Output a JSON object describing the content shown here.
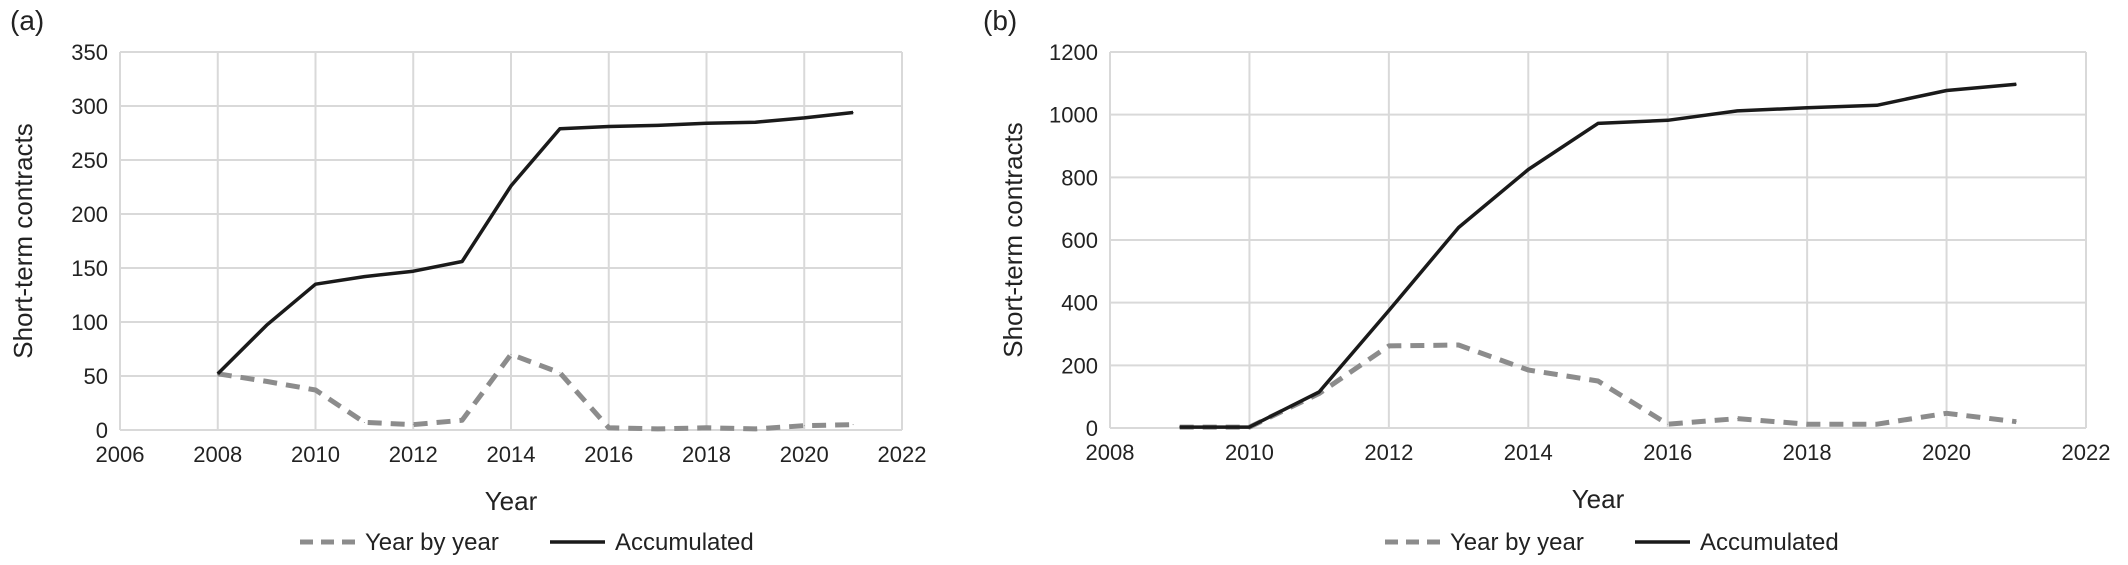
{
  "chart_data": [
    {
      "type": "line",
      "panel_label": "(a)",
      "xlabel": "Year",
      "ylabel": "Short-term contracts",
      "xlim": [
        2006,
        2022
      ],
      "ylim": [
        0,
        350
      ],
      "xticks": [
        "2006",
        "2008",
        "2010",
        "2012",
        "2014",
        "2016",
        "2018",
        "2020",
        "2022"
      ],
      "yticks": [
        "0",
        "50",
        "100",
        "150",
        "200",
        "250",
        "300",
        "350"
      ],
      "grid": true,
      "legend_position": "bottom",
      "x": [
        2008,
        2009,
        2010,
        2011,
        2012,
        2013,
        2014,
        2015,
        2016,
        2017,
        2018,
        2019,
        2020,
        2021
      ],
      "series": [
        {
          "name": "Year by year",
          "style": "dashed",
          "color": "#8c8c8c",
          "values": [
            52,
            45,
            37,
            7,
            5,
            9,
            70,
            53,
            2,
            1,
            2,
            1,
            4,
            5
          ]
        },
        {
          "name": "Accumulated",
          "style": "solid",
          "color": "#1a1a1a",
          "values": [
            52,
            97,
            135,
            142,
            147,
            156,
            226,
            279,
            281,
            282,
            284,
            285,
            289,
            294
          ]
        }
      ]
    },
    {
      "type": "line",
      "panel_label": "(b)",
      "xlabel": "Year",
      "ylabel": "Short-term contracts",
      "xlim": [
        2008,
        2022
      ],
      "ylim": [
        0,
        1200
      ],
      "xticks": [
        "2008",
        "2010",
        "2012",
        "2014",
        "2016",
        "2018",
        "2020",
        "2022"
      ],
      "yticks": [
        "0",
        "200",
        "400",
        "600",
        "800",
        "1000",
        "1200"
      ],
      "grid": true,
      "legend_position": "bottom",
      "x": [
        2009,
        2010,
        2011,
        2012,
        2013,
        2014,
        2015,
        2016,
        2017,
        2018,
        2019,
        2020,
        2021
      ],
      "series": [
        {
          "name": "Year by year",
          "style": "dashed",
          "color": "#8c8c8c",
          "values": [
            3,
            3,
            110,
            262,
            265,
            185,
            150,
            12,
            30,
            12,
            12,
            47,
            20
          ]
        },
        {
          "name": "Accumulated",
          "style": "solid",
          "color": "#1a1a1a",
          "values": [
            3,
            3,
            115,
            375,
            640,
            825,
            972,
            982,
            1012,
            1022,
            1030,
            1077,
            1097
          ]
        }
      ]
    }
  ]
}
